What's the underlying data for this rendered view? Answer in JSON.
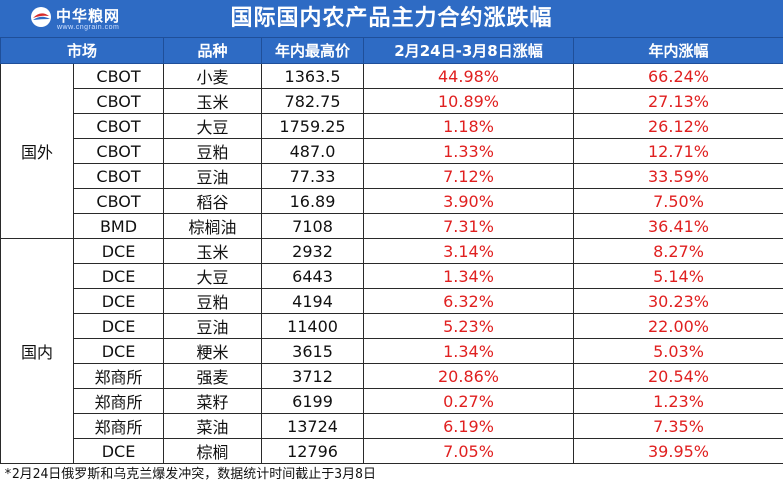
{
  "header": {
    "logo_text": "中华粮网",
    "logo_url": "www.cngrain.com",
    "title": "国际国内农产品主力合约涨跌幅"
  },
  "table": {
    "columns": [
      "市场",
      "品种",
      "年内最高价",
      "2月24日-3月8日涨幅",
      "年内涨幅"
    ],
    "groups": [
      {
        "region": "国外",
        "rows": [
          {
            "market": "CBOT",
            "product": "小麦",
            "high": "1363.5",
            "change_period": "44.98%",
            "change_ytd": "66.24%"
          },
          {
            "market": "CBOT",
            "product": "玉米",
            "high": "782.75",
            "change_period": "10.89%",
            "change_ytd": "27.13%"
          },
          {
            "market": "CBOT",
            "product": "大豆",
            "high": "1759.25",
            "change_period": "1.18%",
            "change_ytd": "26.12%"
          },
          {
            "market": "CBOT",
            "product": "豆粕",
            "high": "487.0",
            "change_period": "1.33%",
            "change_ytd": "12.71%"
          },
          {
            "market": "CBOT",
            "product": "豆油",
            "high": "77.33",
            "change_period": "7.12%",
            "change_ytd": "33.59%"
          },
          {
            "market": "CBOT",
            "product": "稻谷",
            "high": "16.89",
            "change_period": "3.90%",
            "change_ytd": "7.50%"
          },
          {
            "market": "BMD",
            "product": "棕榈油",
            "high": "7108",
            "change_period": "7.31%",
            "change_ytd": "36.41%"
          }
        ]
      },
      {
        "region": "国内",
        "rows": [
          {
            "market": "DCE",
            "product": "玉米",
            "high": "2932",
            "change_period": "3.14%",
            "change_ytd": "8.27%"
          },
          {
            "market": "DCE",
            "product": "大豆",
            "high": "6443",
            "change_period": "1.34%",
            "change_ytd": "5.14%"
          },
          {
            "market": "DCE",
            "product": "豆粕",
            "high": "4194",
            "change_period": "6.32%",
            "change_ytd": "30.23%"
          },
          {
            "market": "DCE",
            "product": "豆油",
            "high": "11400",
            "change_period": "5.23%",
            "change_ytd": "22.00%"
          },
          {
            "market": "DCE",
            "product": "粳米",
            "high": "3615",
            "change_period": "1.34%",
            "change_ytd": "5.03%"
          },
          {
            "market": "郑商所",
            "product": "强麦",
            "high": "3712",
            "change_period": "20.86%",
            "change_ytd": "20.54%"
          },
          {
            "market": "郑商所",
            "product": "菜籽",
            "high": "6199",
            "change_period": "0.27%",
            "change_ytd": "1.23%"
          },
          {
            "market": "郑商所",
            "product": "菜油",
            "high": "13724",
            "change_period": "6.19%",
            "change_ytd": "7.35%"
          },
          {
            "market": "DCE",
            "product": "棕榈",
            "high": "12796",
            "change_period": "7.05%",
            "change_ytd": "39.95%"
          }
        ]
      }
    ]
  },
  "footnote": "*2月24日俄罗斯和乌克兰爆发冲突，数据统计时间截止于3月8日",
  "colors": {
    "header_bg": "#2e6bc4",
    "pct_text": "#e02020"
  }
}
